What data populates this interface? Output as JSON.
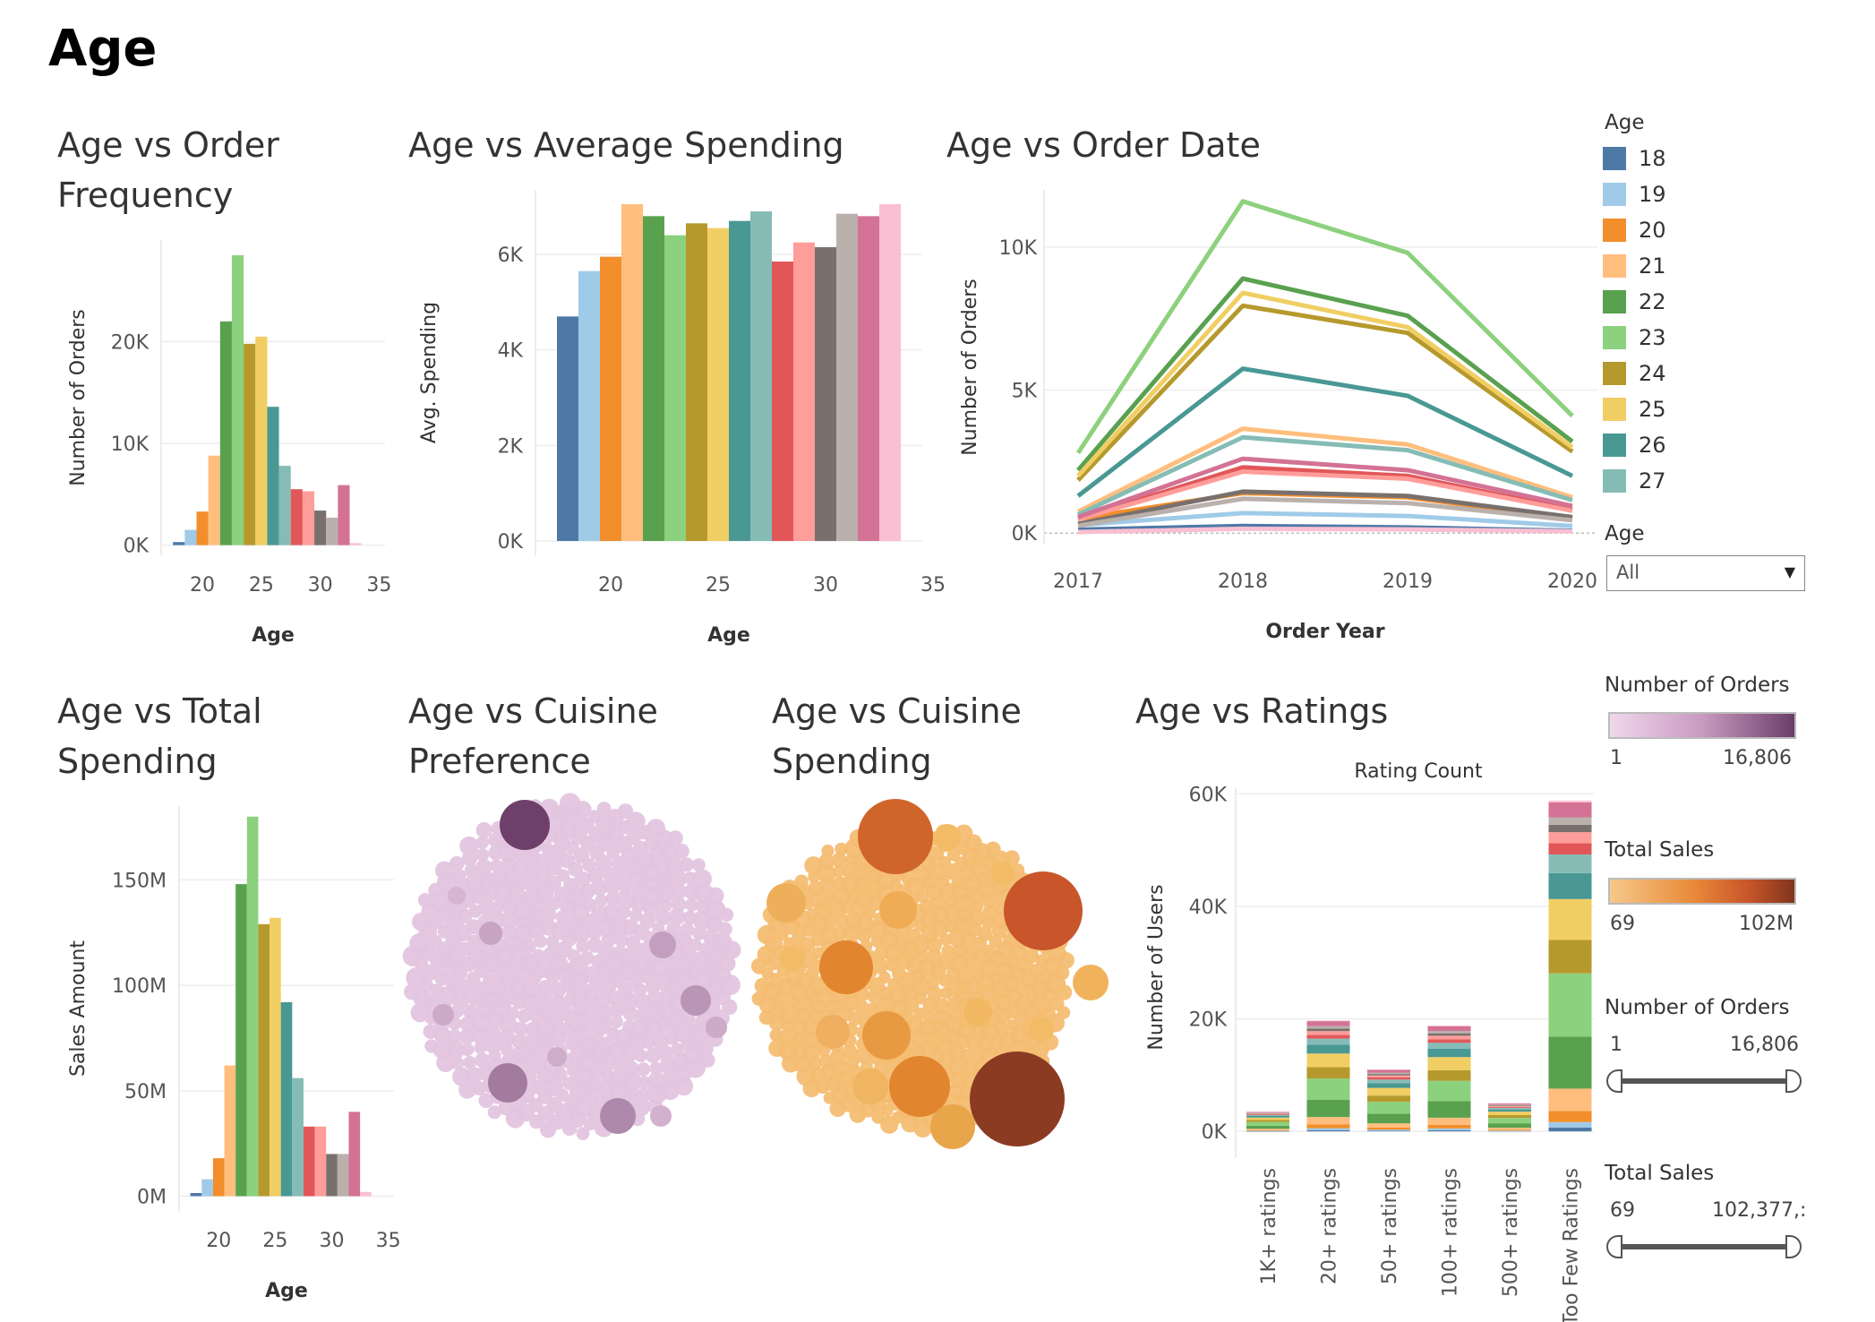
{
  "page_title": "Age",
  "colors": {
    "age": {
      "18": "#4e79a7",
      "19": "#a0cbe8",
      "20": "#f28e2b",
      "21": "#ffbe7d",
      "22": "#59a14f",
      "23": "#8cd17d",
      "24": "#b6992d",
      "25": "#f1ce63",
      "26": "#499894",
      "27": "#86bcb6",
      "28": "#e15759",
      "29": "#ff9d9a",
      "30": "#79706e",
      "31": "#bab0ac",
      "32": "#d37295",
      "33": "#fabfd2",
      "34": "#b07aa1",
      "35": "#d4a6c8"
    },
    "purple_light": "#e3c5df",
    "purple_dark": "#6e3f6b",
    "orange_light": "#f4bd72",
    "orange_dark": "#8b3b22"
  },
  "legend": {
    "title": "Age",
    "items": [
      {
        "label": "18",
        "color": "#4e79a7"
      },
      {
        "label": "19",
        "color": "#a0cbe8"
      },
      {
        "label": "20",
        "color": "#f28e2b"
      },
      {
        "label": "21",
        "color": "#ffbe7d"
      },
      {
        "label": "22",
        "color": "#59a14f"
      },
      {
        "label": "23",
        "color": "#8cd17d"
      },
      {
        "label": "24",
        "color": "#b6992d"
      },
      {
        "label": "25",
        "color": "#f1ce63"
      },
      {
        "label": "26",
        "color": "#499894"
      },
      {
        "label": "27",
        "color": "#86bcb6"
      }
    ]
  },
  "filters": {
    "age_filter": {
      "title": "Age",
      "value": "All"
    },
    "orders_color": {
      "title": "Number of Orders",
      "min": "1",
      "max": "16,806"
    },
    "sales_color": {
      "title": "Total Sales",
      "min": "69",
      "max": "102M"
    },
    "orders_slider": {
      "title": "Number of Orders",
      "min": "1",
      "max": "16,806"
    },
    "sales_slider": {
      "title": "Total Sales",
      "min": "69",
      "max": "102,377,:"
    }
  },
  "chart_data": [
    {
      "id": "freq",
      "type": "bar",
      "title": "Age vs Order Frequency",
      "xlabel": "Age",
      "ylabel": "Number of Orders",
      "categories": [
        "18",
        "19",
        "20",
        "21",
        "22",
        "23",
        "24",
        "25",
        "26",
        "27",
        "28",
        "29",
        "30",
        "31",
        "32",
        "33"
      ],
      "values": [
        300,
        1500,
        3300,
        8800,
        22000,
        28500,
        19800,
        20500,
        13600,
        7800,
        5500,
        5300,
        3400,
        2700,
        5900,
        200
      ],
      "ylim": [
        -1000,
        30000
      ],
      "yticks": [
        0,
        10000,
        20000
      ],
      "ytick_labels": [
        "0K",
        "10K",
        "20K"
      ],
      "xlim": [
        16.5,
        35.5
      ],
      "xticks": [
        20,
        25,
        30,
        35
      ],
      "xtick_labels": [
        "20",
        "25",
        "30",
        "35"
      ]
    },
    {
      "id": "avgspend",
      "type": "bar",
      "title": "Age vs Average Spending",
      "xlabel": "Age",
      "ylabel": "Avg. Spending",
      "categories": [
        "18",
        "19",
        "20",
        "21",
        "22",
        "23",
        "24",
        "25",
        "26",
        "27",
        "28",
        "29",
        "30",
        "31",
        "32",
        "33"
      ],
      "values": [
        4700,
        5650,
        5950,
        7050,
        6800,
        6400,
        6650,
        6550,
        6700,
        6900,
        5850,
        6250,
        6150,
        6850,
        6800,
        7050
      ],
      "ylim": [
        -300,
        7350
      ],
      "yticks": [
        0,
        2000,
        4000,
        6000
      ],
      "ytick_labels": [
        "0K",
        "2K",
        "4K",
        "6K"
      ],
      "xlim": [
        16.5,
        34.5
      ],
      "xticks": [
        20,
        25,
        30,
        35
      ],
      "xtick_labels": [
        "20",
        "25",
        "30",
        "35"
      ]
    },
    {
      "id": "orderdate",
      "type": "line",
      "title": "Age vs Order Date",
      "xlabel": "Order Year",
      "ylabel": "Number of Orders",
      "x": [
        "2017",
        "2018",
        "2019",
        "2020"
      ],
      "series": [
        {
          "name": "18",
          "values": [
            120,
            250,
            200,
            80
          ]
        },
        {
          "name": "19",
          "values": [
            280,
            700,
            600,
            250
          ]
        },
        {
          "name": "20",
          "values": [
            500,
            1400,
            1250,
            520
          ]
        },
        {
          "name": "21",
          "values": [
            750,
            3650,
            3100,
            1250
          ]
        },
        {
          "name": "22",
          "values": [
            2200,
            8900,
            7600,
            3200
          ]
        },
        {
          "name": "23",
          "values": [
            2800,
            11600,
            9800,
            4100
          ]
        },
        {
          "name": "24",
          "values": [
            1850,
            7950,
            7000,
            2850
          ]
        },
        {
          "name": "25",
          "values": [
            2000,
            8400,
            7200,
            3000
          ]
        },
        {
          "name": "26",
          "values": [
            1300,
            5750,
            4800,
            2000
          ]
        },
        {
          "name": "27",
          "values": [
            650,
            3350,
            2900,
            1150
          ]
        },
        {
          "name": "28",
          "values": [
            500,
            2300,
            2000,
            820
          ]
        },
        {
          "name": "29",
          "values": [
            480,
            2150,
            1900,
            780
          ]
        },
        {
          "name": "30",
          "values": [
            320,
            1450,
            1300,
            560
          ]
        },
        {
          "name": "31",
          "values": [
            260,
            1200,
            1050,
            450
          ]
        },
        {
          "name": "32",
          "values": [
            560,
            2600,
            2200,
            950
          ]
        },
        {
          "name": "33",
          "values": [
            40,
            150,
            130,
            60
          ]
        }
      ],
      "ylim": [
        -400,
        12000
      ],
      "yticks": [
        0,
        5000,
        10000
      ],
      "ytick_labels": [
        "0K",
        "5K",
        "10K"
      ]
    },
    {
      "id": "totalspend",
      "type": "bar",
      "title": "Age vs Total Spending",
      "xlabel": "Age",
      "ylabel": "Sales Amount",
      "categories": [
        "18",
        "19",
        "20",
        "21",
        "22",
        "23",
        "24",
        "25",
        "26",
        "27",
        "28",
        "29",
        "30",
        "31",
        "32",
        "33"
      ],
      "values": [
        1500000,
        8000000,
        18000000,
        62000000,
        148000000,
        180000000,
        129000000,
        132000000,
        92000000,
        56000000,
        33000000,
        33000000,
        20000000,
        20000000,
        40000000,
        2000000
      ],
      "ylim": [
        -7000000,
        185000000
      ],
      "yticks": [
        0,
        50000000,
        100000000,
        150000000
      ],
      "ytick_labels": [
        "0M",
        "50M",
        "100M",
        "150M"
      ],
      "xlim": [
        16.5,
        35.5
      ],
      "xticks": [
        20,
        25,
        30,
        35
      ],
      "xtick_labels": [
        "20",
        "25",
        "30",
        "35"
      ]
    },
    {
      "id": "cuisinepref",
      "type": "scatter",
      "title": "Age vs Cuisine Preference",
      "notes": "packed bubble chart; color encodes Number of Orders (1 to 16,806)"
    },
    {
      "id": "cuisinespend",
      "type": "scatter",
      "title": "Age vs Cuisine Spending",
      "notes": "packed bubble chart; color and size encode Total Sales (69 to 102M)"
    },
    {
      "id": "ratings",
      "type": "bar",
      "title": "Age vs Ratings",
      "subtitle": "Rating Count",
      "ylabel": "Number of Users",
      "categories": [
        "1K+ ratings",
        "20+ ratings",
        "50+ ratings",
        "100+ ratings",
        "500+ ratings",
        "Too Few Ratings"
      ],
      "totals": [
        3500,
        19700,
        11000,
        18800,
        5000,
        58800
      ],
      "ylim": [
        -3000,
        61000
      ],
      "yticks": [
        0,
        20000,
        40000,
        60000
      ],
      "ytick_labels": [
        "0K",
        "20K",
        "40K",
        "60K"
      ],
      "segment_shares": {
        "18": 0.01,
        "19": 0.015,
        "20": 0.03,
        "21": 0.06,
        "22": 0.14,
        "23": 0.17,
        "24": 0.09,
        "25": 0.11,
        "26": 0.07,
        "27": 0.05,
        "28": 0.03,
        "29": 0.03,
        "30": 0.02,
        "31": 0.02,
        "32": 0.04,
        "33": 0.005
      }
    }
  ]
}
